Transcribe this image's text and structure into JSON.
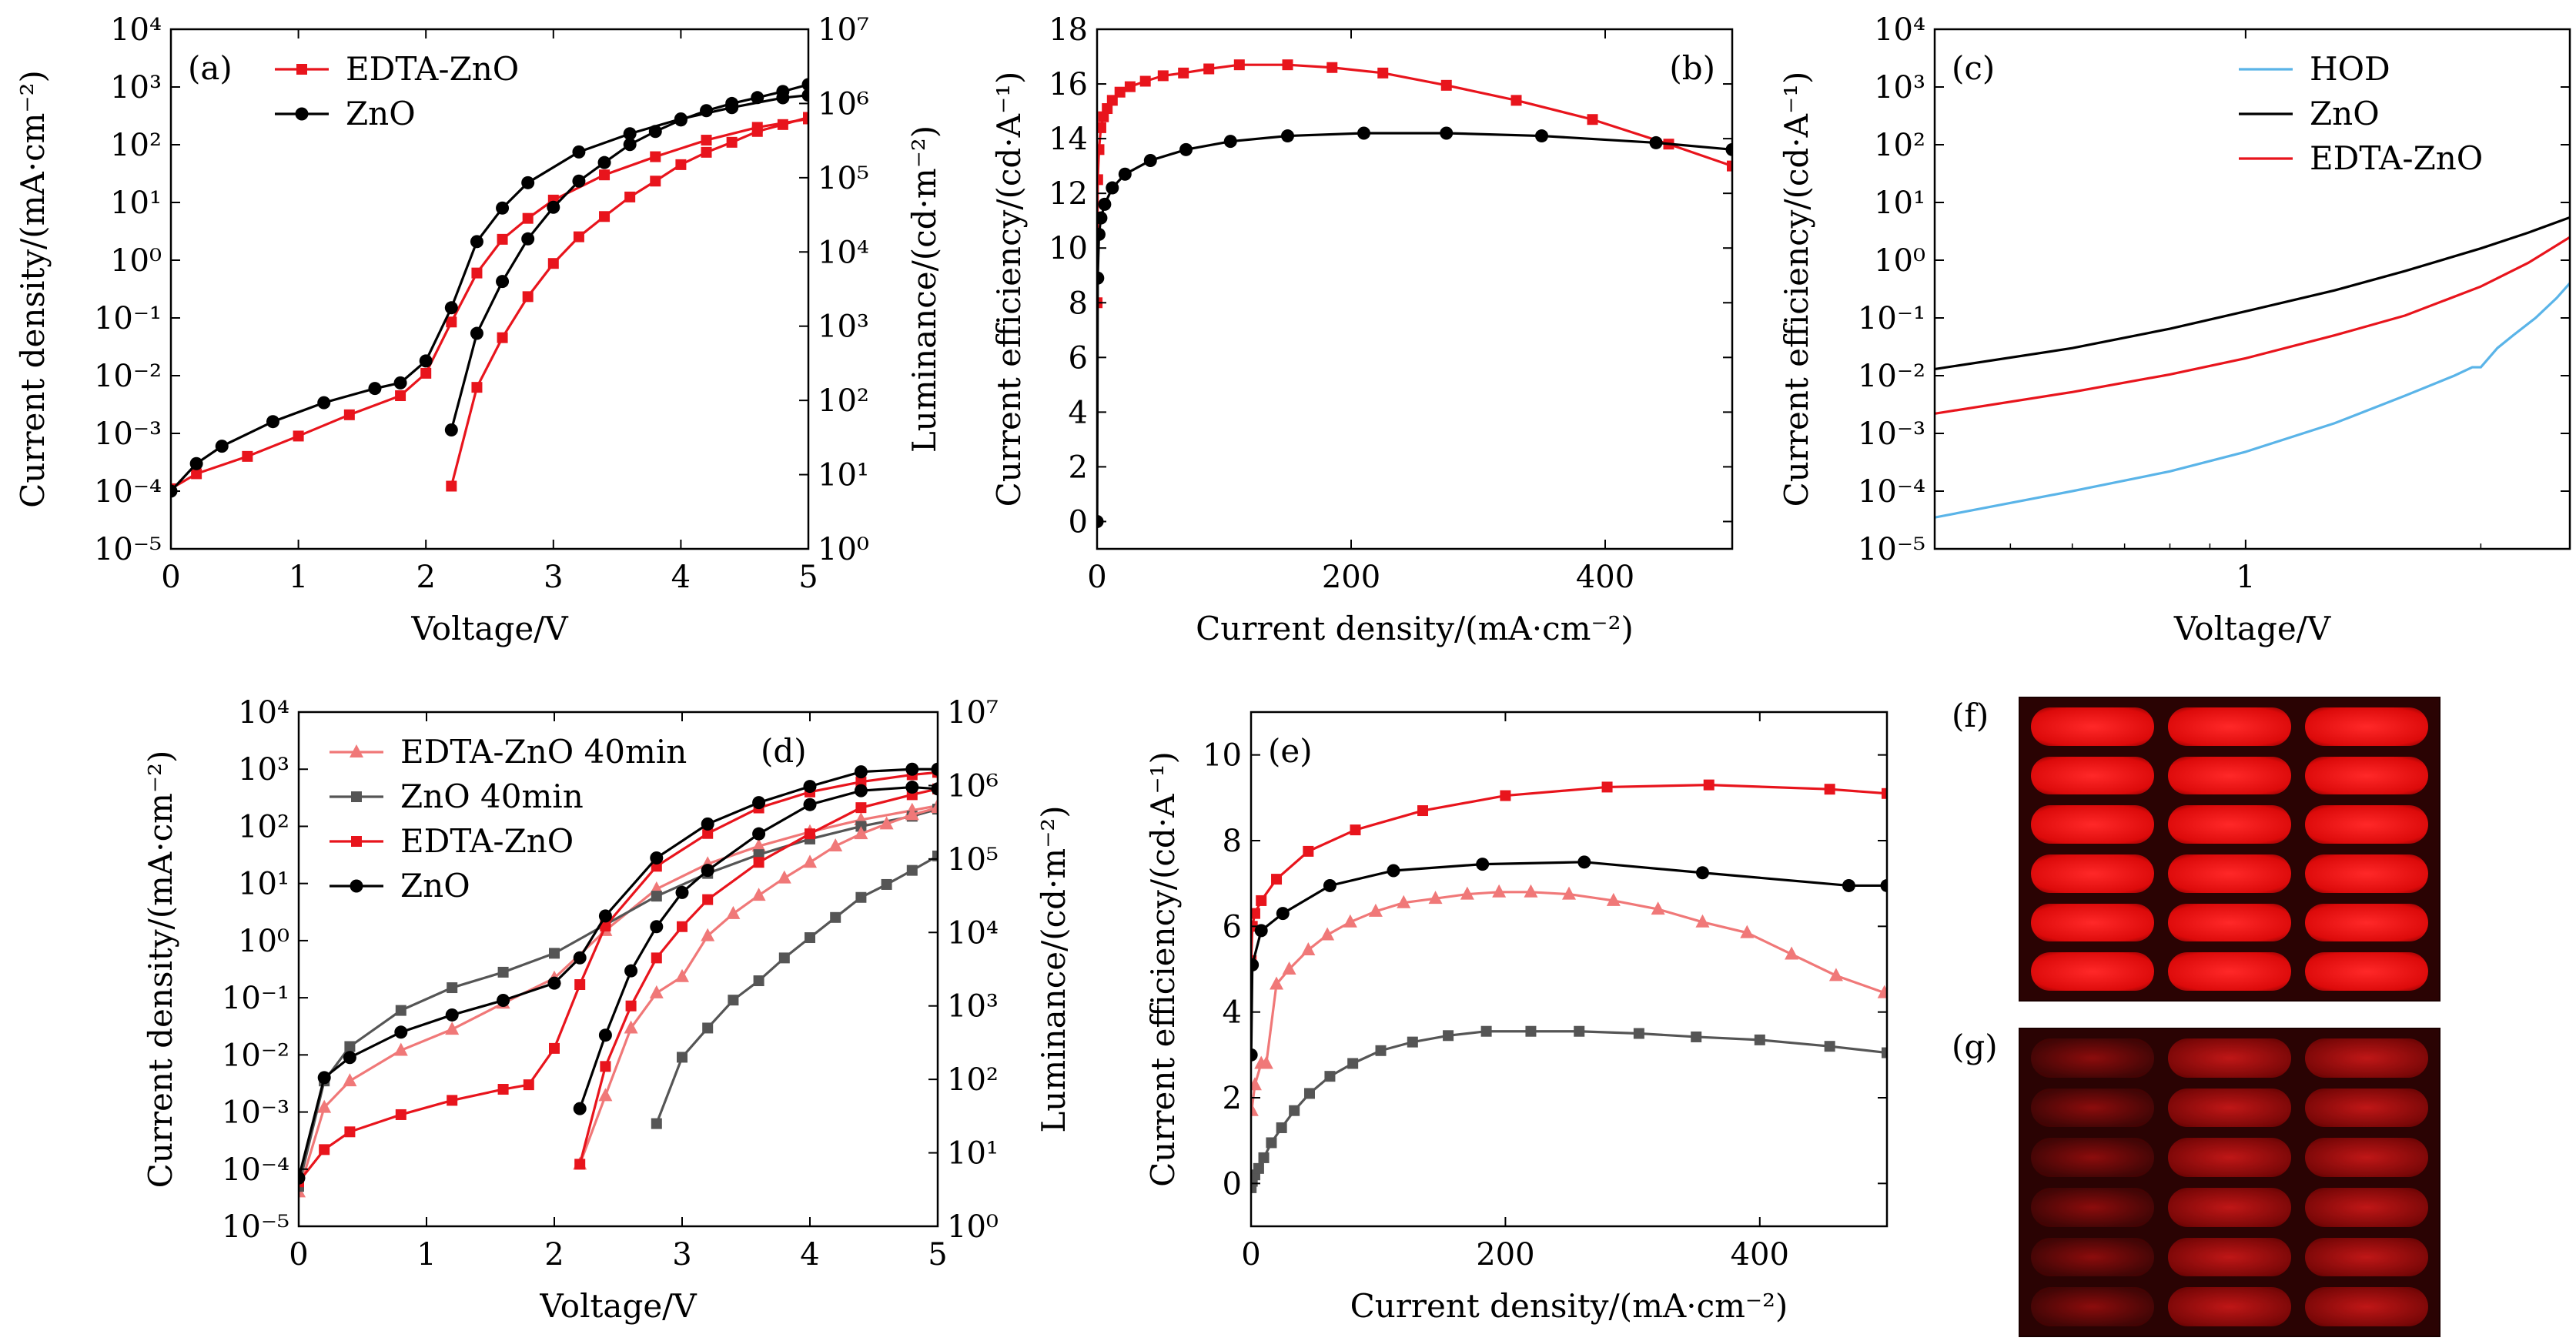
{
  "colors": {
    "red": "#e8141c",
    "black": "#000000",
    "pink": "#f07878",
    "gray": "#555555",
    "blue": "#5ab4e8"
  },
  "chart_data": [
    {
      "id": "a",
      "type": "line",
      "panel_label": "(a)",
      "xlabel": "Voltage/V",
      "ylabel": "Current density/(mA·cm⁻²)",
      "y2label": "Luminance/(cd·m⁻²)",
      "xlim": [
        0,
        5
      ],
      "ylim_log10": [
        -5,
        4
      ],
      "y2lim_log10": [
        0,
        7
      ],
      "xticks": [
        "0",
        "1",
        "2",
        "3",
        "4",
        "5"
      ],
      "yticks": [
        "10⁻⁵",
        "10⁻⁴",
        "10⁻³",
        "10⁻²",
        "10⁻¹",
        "10⁰",
        "10¹",
        "10²",
        "10³",
        "10⁴"
      ],
      "y2ticks": [
        "10⁰",
        "10¹",
        "10²",
        "10³",
        "10⁴",
        "10⁵",
        "10⁶",
        "10⁷"
      ],
      "legend": [
        "EDTA-ZnO",
        "ZnO"
      ],
      "series": [
        {
          "name": "EDTA-ZnO",
          "color": "red",
          "marker": "square",
          "axis": "left",
          "x": [
            0,
            0.2,
            0.6,
            1.0,
            1.4,
            1.8,
            2.0,
            2.2,
            2.4,
            2.6,
            2.8,
            3.0,
            3.4,
            3.8,
            4.2,
            4.6,
            5.0
          ],
          "y": [
            0.00011,
            0.0002,
            0.0004,
            0.0009,
            0.0021,
            0.0045,
            0.011,
            0.085,
            0.6,
            2.3,
            5.3,
            11,
            30,
            62,
            120,
            200,
            280
          ]
        },
        {
          "name": "ZnO",
          "color": "black",
          "marker": "circle",
          "axis": "left",
          "x": [
            0,
            0.2,
            0.4,
            0.8,
            1.2,
            1.6,
            1.8,
            2.0,
            2.2,
            2.4,
            2.6,
            2.8,
            3.2,
            3.6,
            4.0,
            4.4,
            4.8,
            5.0
          ],
          "y": [
            0.0001,
            0.0003,
            0.0006,
            0.0016,
            0.0034,
            0.006,
            0.0075,
            0.018,
            0.15,
            2.1,
            8,
            22,
            75,
            155,
            280,
            440,
            650,
            720
          ]
        },
        {
          "name": "EDTA-ZnO",
          "color": "red",
          "marker": "square",
          "axis": "right",
          "x": [
            2.2,
            2.4,
            2.6,
            2.8,
            3.0,
            3.2,
            3.4,
            3.6,
            3.8,
            4.0,
            4.2,
            4.4,
            4.6,
            4.8,
            5.0
          ],
          "y": [
            7,
            150,
            700,
            2500,
            7000,
            16000,
            30000,
            55000,
            90000,
            150000,
            220000,
            300000,
            420000,
            520000,
            650000
          ]
        },
        {
          "name": "ZnO",
          "color": "black",
          "marker": "circle",
          "axis": "right",
          "x": [
            2.2,
            2.4,
            2.6,
            2.8,
            3.0,
            3.2,
            3.4,
            3.6,
            3.8,
            4.0,
            4.2,
            4.4,
            4.6,
            4.8,
            5.0
          ],
          "y": [
            40,
            800,
            4000,
            15000,
            40000,
            90000,
            160000,
            280000,
            420000,
            600000,
            800000,
            1000000,
            1200000,
            1450000,
            1800000
          ]
        }
      ]
    },
    {
      "id": "b",
      "type": "line",
      "panel_label": "(b)",
      "xlabel": "Current density/(mA·cm⁻²)",
      "ylabel": "Current efficiency/(cd·A⁻¹)",
      "xlim": [
        0,
        500
      ],
      "ylim": [
        -1,
        18
      ],
      "xticks": [
        "0",
        "200",
        "400"
      ],
      "yticks": [
        "0",
        "2",
        "4",
        "6",
        "8",
        "10",
        "12",
        "14",
        "16",
        "18"
      ],
      "series": [
        {
          "name": "EDTA-ZnO",
          "color": "red",
          "marker": "square",
          "x": [
            0.05,
            0.5,
            1.5,
            3,
            5,
            8,
            12,
            18,
            26,
            38,
            52,
            68,
            88,
            112,
            150,
            185,
            225,
            275,
            330,
            390,
            450,
            500
          ],
          "y": [
            8,
            12.5,
            13.6,
            14.4,
            14.8,
            15.1,
            15.4,
            15.7,
            15.9,
            16.1,
            16.3,
            16.4,
            16.55,
            16.7,
            16.7,
            16.6,
            16.4,
            15.95,
            15.4,
            14.7,
            13.8,
            13.0
          ]
        },
        {
          "name": "ZnO",
          "color": "black",
          "marker": "circle",
          "x": [
            0.05,
            0.5,
            1.5,
            3,
            6,
            12,
            22,
            42,
            70,
            105,
            150,
            210,
            275,
            350,
            440,
            500
          ],
          "y": [
            0,
            8.9,
            10.5,
            11.1,
            11.6,
            12.2,
            12.7,
            13.2,
            13.6,
            13.9,
            14.1,
            14.2,
            14.2,
            14.1,
            13.85,
            13.6
          ]
        }
      ]
    },
    {
      "id": "c",
      "type": "line",
      "panel_label": "(c)",
      "xlabel": "Voltage/V",
      "ylabel": "Current efficiency/(cd·A⁻¹)",
      "x_scale": "log",
      "xlim": [
        0.4,
        2.6
      ],
      "ylim_log10": [
        -5,
        4
      ],
      "xticks": [
        "1"
      ],
      "yticks": [
        "10⁻⁵",
        "10⁻⁴",
        "10⁻³",
        "10⁻²",
        "10⁻¹",
        "10⁰",
        "10¹",
        "10²",
        "10³",
        "10⁴"
      ],
      "legend": [
        "HOD",
        "ZnO",
        "EDTA-ZnO"
      ],
      "series": [
        {
          "name": "HOD",
          "color": "blue",
          "x": [
            0.4,
            0.6,
            0.8,
            1.0,
            1.3,
            1.6,
            1.85,
            1.95,
            2.0,
            2.1,
            2.2,
            2.35,
            2.5,
            2.6
          ],
          "y": [
            3.5e-05,
            0.0001,
            0.00022,
            0.00048,
            0.0015,
            0.0045,
            0.01,
            0.014,
            0.014,
            0.03,
            0.05,
            0.1,
            0.22,
            0.4
          ]
        },
        {
          "name": "ZnO",
          "color": "black",
          "x": [
            0.4,
            0.6,
            0.8,
            1.0,
            1.3,
            1.6,
            2.0,
            2.3,
            2.6
          ],
          "y": [
            0.013,
            0.03,
            0.065,
            0.13,
            0.3,
            0.65,
            1.6,
            3.0,
            5.5
          ]
        },
        {
          "name": "EDTA-ZnO",
          "color": "red",
          "x": [
            0.4,
            0.6,
            0.8,
            1.0,
            1.3,
            1.6,
            2.0,
            2.3,
            2.6
          ],
          "y": [
            0.0022,
            0.0052,
            0.0105,
            0.02,
            0.05,
            0.11,
            0.35,
            0.9,
            2.5
          ]
        }
      ]
    },
    {
      "id": "d",
      "type": "line",
      "panel_label": "(d)",
      "xlabel": "Voltage/V",
      "ylabel": "Current density/(mA·cm⁻²)",
      "y2label": "Luminance/(cd·m⁻²)",
      "xlim": [
        0,
        5
      ],
      "ylim_log10": [
        -5,
        4
      ],
      "y2lim_log10": [
        0,
        7
      ],
      "xticks": [
        "0",
        "1",
        "2",
        "3",
        "4",
        "5"
      ],
      "yticks": [
        "10⁻⁵",
        "10⁻⁴",
        "10⁻³",
        "10⁻²",
        "10⁻¹",
        "10⁰",
        "10¹",
        "10²",
        "10³",
        "10⁴"
      ],
      "y2ticks": [
        "10⁰",
        "10¹",
        "10²",
        "10³",
        "10⁴",
        "10⁵",
        "10⁶",
        "10⁷"
      ],
      "legend": [
        "EDTA-ZnO 40min",
        "ZnO 40min",
        "EDTA-ZnO",
        "ZnO"
      ],
      "series": [
        {
          "name": "EDTA-ZnO 40min",
          "color": "pink",
          "marker": "triangle",
          "axis": "left",
          "x": [
            0,
            0.2,
            0.4,
            0.8,
            1.2,
            1.6,
            2.0,
            2.4,
            2.8,
            3.2,
            3.6,
            4.0,
            4.4,
            4.8,
            5.0
          ],
          "y": [
            4e-05,
            0.0012,
            0.0035,
            0.012,
            0.028,
            0.08,
            0.22,
            1.5,
            8,
            22,
            45,
            80,
            130,
            190,
            230
          ]
        },
        {
          "name": "ZnO 40min",
          "color": "gray",
          "marker": "square",
          "axis": "left",
          "x": [
            0,
            0.2,
            0.4,
            0.8,
            1.2,
            1.6,
            2.0,
            2.4,
            2.8,
            3.2,
            3.6,
            4.0,
            4.4,
            4.8,
            5.0
          ],
          "y": [
            5e-05,
            0.0035,
            0.014,
            0.06,
            0.15,
            0.28,
            0.6,
            1.9,
            6,
            15,
            32,
            60,
            100,
            150,
            200
          ]
        },
        {
          "name": "EDTA-ZnO",
          "color": "red",
          "marker": "square",
          "axis": "left",
          "x": [
            0,
            0.2,
            0.4,
            0.8,
            1.2,
            1.6,
            1.8,
            2.0,
            2.2,
            2.4,
            2.8,
            3.2,
            3.6,
            4.0,
            4.4,
            4.8,
            5.0
          ],
          "y": [
            6e-05,
            0.00022,
            0.00045,
            0.0009,
            0.0016,
            0.0025,
            0.003,
            0.013,
            0.17,
            1.8,
            20,
            75,
            210,
            400,
            600,
            800,
            880
          ]
        },
        {
          "name": "ZnO",
          "color": "black",
          "marker": "circle",
          "axis": "left",
          "x": [
            0,
            0.2,
            0.4,
            0.8,
            1.2,
            1.6,
            2.0,
            2.2,
            2.4,
            2.8,
            3.2,
            3.6,
            4.0,
            4.4,
            4.8,
            5.0
          ],
          "y": [
            7e-05,
            0.004,
            0.009,
            0.025,
            0.05,
            0.09,
            0.18,
            0.5,
            2.7,
            28,
            110,
            260,
            500,
            900,
            1000,
            1000
          ]
        },
        {
          "name": "EDTA-ZnO 40min",
          "color": "pink",
          "marker": "triangle",
          "axis": "right",
          "x": [
            2.2,
            2.4,
            2.6,
            2.8,
            3.0,
            3.2,
            3.4,
            3.6,
            3.8,
            4.0,
            4.2,
            4.4,
            4.6,
            4.8,
            5.0
          ],
          "y": [
            7,
            60,
            500,
            1500,
            2500,
            9000,
            18000,
            32000,
            55000,
            90000,
            150000,
            220000,
            300000,
            400000,
            500000
          ]
        },
        {
          "name": "ZnO 40min",
          "color": "gray",
          "marker": "square",
          "axis": "right",
          "x": [
            2.8,
            3.0,
            3.2,
            3.4,
            3.6,
            3.8,
            4.0,
            4.2,
            4.4,
            4.6,
            4.8,
            5.0
          ],
          "y": [
            25,
            200,
            500,
            1200,
            2200,
            4500,
            8500,
            16000,
            30000,
            45000,
            70000,
            110000
          ]
        },
        {
          "name": "EDTA-ZnO",
          "color": "red",
          "marker": "square",
          "axis": "right",
          "x": [
            2.2,
            2.4,
            2.6,
            2.8,
            3.0,
            3.2,
            3.6,
            4.0,
            4.4,
            4.8,
            5.0
          ],
          "y": [
            7,
            150,
            1000,
            4500,
            12000,
            28000,
            90000,
            220000,
            500000,
            750000,
            900000
          ]
        },
        {
          "name": "ZnO",
          "color": "black",
          "marker": "circle",
          "axis": "right",
          "x": [
            2.2,
            2.4,
            2.6,
            2.8,
            3.0,
            3.2,
            3.6,
            4.0,
            4.4,
            4.8,
            5.0
          ],
          "y": [
            40,
            400,
            3000,
            12000,
            35000,
            70000,
            220000,
            550000,
            850000,
            950000,
            900000
          ]
        }
      ]
    },
    {
      "id": "e",
      "type": "line",
      "panel_label": "(e)",
      "xlabel": "Current density/(mA·cm⁻²)",
      "ylabel": "Current efficiency/(cd·A⁻¹)",
      "xlim": [
        0,
        500
      ],
      "ylim": [
        -1,
        11
      ],
      "xticks": [
        "0",
        "200",
        "400"
      ],
      "yticks": [
        "0",
        "2",
        "4",
        "6",
        "8",
        "10"
      ],
      "series": [
        {
          "name": "EDTA-ZnO",
          "color": "red",
          "marker": "square",
          "x": [
            0.1,
            1,
            3,
            8,
            20,
            45,
            82,
            135,
            200,
            280,
            360,
            455,
            500
          ],
          "y": [
            5.2,
            6.0,
            6.3,
            6.6,
            7.1,
            7.75,
            8.25,
            8.7,
            9.05,
            9.25,
            9.3,
            9.2,
            9.1
          ]
        },
        {
          "name": "ZnO",
          "color": "black",
          "marker": "circle",
          "x": [
            0.1,
            1,
            8,
            25,
            62,
            112,
            182,
            262,
            355,
            470,
            500
          ],
          "y": [
            3.0,
            5.1,
            5.9,
            6.3,
            6.95,
            7.3,
            7.45,
            7.5,
            7.25,
            6.95,
            6.95
          ]
        },
        {
          "name": "EDTA-ZnO 40min",
          "color": "pink",
          "marker": "triangle",
          "x": [
            0.5,
            3,
            8,
            12,
            20,
            30,
            45,
            60,
            78,
            98,
            120,
            145,
            170,
            195,
            220,
            250,
            285,
            320,
            355,
            390,
            425,
            460,
            498
          ],
          "y": [
            1.7,
            2.3,
            2.8,
            2.8,
            4.65,
            5.0,
            5.45,
            5.8,
            6.1,
            6.35,
            6.55,
            6.65,
            6.75,
            6.8,
            6.8,
            6.75,
            6.6,
            6.4,
            6.1,
            5.85,
            5.35,
            4.85,
            4.45
          ]
        },
        {
          "name": "ZnO 40min",
          "color": "gray",
          "marker": "square",
          "x": [
            0.1,
            1,
            3,
            6,
            10,
            16,
            24,
            34,
            46,
            62,
            80,
            102,
            127,
            155,
            185,
            220,
            258,
            305,
            350,
            400,
            455,
            500
          ],
          "y": [
            -0.1,
            0.05,
            0.2,
            0.35,
            0.6,
            0.95,
            1.3,
            1.7,
            2.1,
            2.5,
            2.8,
            3.1,
            3.3,
            3.45,
            3.55,
            3.55,
            3.55,
            3.5,
            3.42,
            3.35,
            3.2,
            3.05
          ]
        }
      ]
    }
  ],
  "photos": [
    {
      "label": "(f)",
      "rows": 6,
      "cols": 3,
      "brightness": "bright"
    },
    {
      "label": "(g)",
      "rows": 6,
      "cols": 3,
      "brightness": "dim"
    }
  ]
}
